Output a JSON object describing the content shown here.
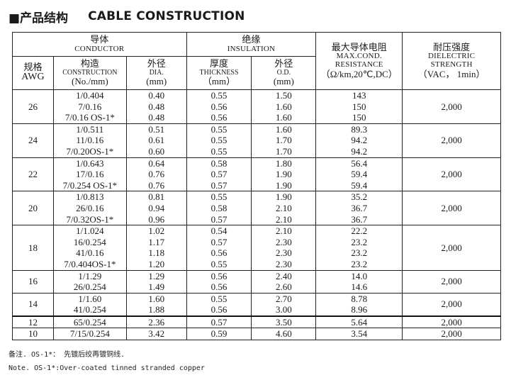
{
  "title": {
    "cn": "■产品结构",
    "en": "CABLE CONSTRUCTION"
  },
  "header": {
    "conductor": {
      "cn": "导体",
      "en": "CONDUCTOR"
    },
    "insulation": {
      "cn": "绝缘",
      "en": "INSULATION"
    },
    "resistance": {
      "cn": "最大导体电阻",
      "en1": "MAX.COND.",
      "en2": "RESISTANCE",
      "unit": "（Ω/km,20℃,DC）"
    },
    "dielectric": {
      "cn": "耐压强度",
      "en1": "DIELECTRIC",
      "en2": "STRENGTH",
      "unit": "（VAC， 1min）"
    },
    "awg": {
      "cn": "规格",
      "en": "AWG"
    },
    "construction": {
      "cn": "构造",
      "en": "CONSTRUCTION",
      "unit": "(No./mm)"
    },
    "dia": {
      "cn": "外径",
      "en": "DIA.",
      "unit": "(mm)"
    },
    "thickness": {
      "cn": "厚度",
      "en": "THICKNESS",
      "unit": "（mm）"
    },
    "od": {
      "cn": "外径",
      "en": "O.D.",
      "unit": "(mm)"
    }
  },
  "rows": [
    {
      "awg": "26",
      "construction": [
        "1/0.404",
        "7/0.16",
        "7/0.16 OS-1*"
      ],
      "dia": [
        "0.40",
        "0.48",
        "0.48"
      ],
      "thickness": [
        "0.55",
        "0.56",
        "0.56"
      ],
      "od": [
        "1.50",
        "1.60",
        "1.60"
      ],
      "resistance": [
        "143",
        "150",
        "150"
      ],
      "dielectric": "2,000"
    },
    {
      "awg": "24",
      "construction": [
        "1/0.511",
        "11/0.16",
        "7/0.20OS-1*"
      ],
      "dia": [
        "0.51",
        "0.61",
        "0.60"
      ],
      "thickness": [
        "0.55",
        "0.55",
        "0.55"
      ],
      "od": [
        "1.60",
        "1.70",
        "1.70"
      ],
      "resistance": [
        "89.3",
        "94.2",
        "94.2"
      ],
      "dielectric": "2,000"
    },
    {
      "awg": "22",
      "construction": [
        "1/0.643",
        "17/0.16",
        "7/0.254 OS-1*"
      ],
      "dia": [
        "0.64",
        "0.76",
        "0.76"
      ],
      "thickness": [
        "0.58",
        "0.57",
        "0.57"
      ],
      "od": [
        "1.80",
        "1.90",
        "1.90"
      ],
      "resistance": [
        "56.4",
        "59.4",
        "59.4"
      ],
      "dielectric": "2,000"
    },
    {
      "awg": "20",
      "construction": [
        "1/0.813",
        "26/0.16",
        "7/0.32OS-1*"
      ],
      "dia": [
        "0.81",
        "0.94",
        "0.96"
      ],
      "thickness": [
        "0.55",
        "0.58",
        "0.57"
      ],
      "od": [
        "1.90",
        "2.10",
        "2.10"
      ],
      "resistance": [
        "35.2",
        "36.7",
        "36.7"
      ],
      "dielectric": "2,000"
    },
    {
      "awg": "18",
      "construction": [
        "1/1.024",
        "16/0.254",
        "41/0.16",
        "7/0.404OS-1*"
      ],
      "dia": [
        "1.02",
        "1.17",
        "1.18",
        "1.20"
      ],
      "thickness": [
        "0.54",
        "0.57",
        "0.56",
        "0.55"
      ],
      "od": [
        "2.10",
        "2.30",
        "2.30",
        "2.30"
      ],
      "resistance": [
        "22.2",
        "23.2",
        "23.2",
        "23.2"
      ],
      "dielectric": "2,000"
    },
    {
      "awg": "16",
      "construction": [
        "1/1.29",
        "26/0.254"
      ],
      "dia": [
        "1.29",
        "1.49"
      ],
      "thickness": [
        "0.56",
        "0.56"
      ],
      "od": [
        "2.40",
        "2.60"
      ],
      "resistance": [
        "14.0",
        "14.6"
      ],
      "dielectric": "2,000"
    },
    {
      "awg": "14",
      "construction": [
        "1/1.60",
        "41/0.254"
      ],
      "dia": [
        "1.60",
        "1.88"
      ],
      "thickness": [
        "0.55",
        "0.56"
      ],
      "od": [
        "2.70",
        "3.00"
      ],
      "resistance": [
        "8.78",
        "8.96"
      ],
      "dielectric": "2,000"
    },
    {
      "awg": "12",
      "construction": [
        "65/0.254"
      ],
      "dia": [
        "2.36"
      ],
      "thickness": [
        "0.57"
      ],
      "od": [
        "3.50"
      ],
      "resistance": [
        "5.64"
      ],
      "dielectric": "2,000"
    },
    {
      "awg": "10",
      "construction": [
        "7/15/0.254"
      ],
      "dia": [
        "3.42"
      ],
      "thickness": [
        "0.59"
      ],
      "od": [
        "4.60"
      ],
      "resistance": [
        "3.54"
      ],
      "dielectric": "2,000"
    }
  ],
  "notes": {
    "cn": "备注. OS-1*：  先镀后绞再镀铜线.",
    "en": "Note. OS-1*:Over-coated tinned stranded copper"
  }
}
